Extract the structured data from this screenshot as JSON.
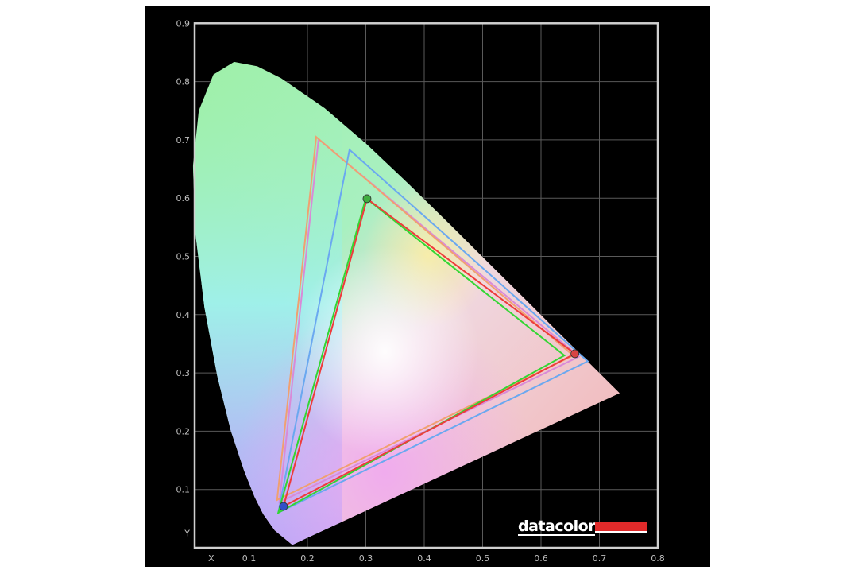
{
  "chart_data": {
    "type": "scatter",
    "title": "",
    "xlabel": "X",
    "ylabel": "Y",
    "xlim": [
      0,
      0.8
    ],
    "ylim": [
      0,
      0.9
    ],
    "x_ticks": [
      "0.1",
      "0.2",
      "0.3",
      "0.4",
      "0.5",
      "0.6",
      "0.7",
      "0.8"
    ],
    "y_ticks": [
      "0.1",
      "0.2",
      "0.3",
      "0.4",
      "0.5",
      "0.6",
      "0.7",
      "0.8",
      "0.9"
    ],
    "grid": true,
    "background": "#000000",
    "spectral_locus": [
      [
        0.1741,
        0.005
      ],
      [
        0.144,
        0.0297
      ],
      [
        0.1241,
        0.0578
      ],
      [
        0.1096,
        0.0868
      ],
      [
        0.0913,
        0.1327
      ],
      [
        0.0687,
        0.2007
      ],
      [
        0.0454,
        0.295
      ],
      [
        0.0235,
        0.4127
      ],
      [
        0.0082,
        0.5384
      ],
      [
        0.0039,
        0.6548
      ],
      [
        0.0139,
        0.7502
      ],
      [
        0.0389,
        0.812
      ],
      [
        0.0743,
        0.8338
      ],
      [
        0.1142,
        0.8262
      ],
      [
        0.1547,
        0.8059
      ],
      [
        0.2296,
        0.7543
      ],
      [
        0.3016,
        0.6923
      ],
      [
        0.3731,
        0.6245
      ],
      [
        0.4441,
        0.5547
      ],
      [
        0.5125,
        0.4866
      ],
      [
        0.5752,
        0.4242
      ],
      [
        0.627,
        0.3725
      ],
      [
        0.6915,
        0.3083
      ],
      [
        0.7347,
        0.2653
      ]
    ],
    "series": [
      {
        "color": "#d98ad8",
        "points": [
          [
            0.219,
            0.701
          ],
          [
            0.665,
            0.328
          ],
          [
            0.152,
            0.078
          ]
        ]
      },
      {
        "color": "#f0a070",
        "points": [
          [
            0.215,
            0.705
          ],
          [
            0.655,
            0.33
          ],
          [
            0.148,
            0.082
          ]
        ]
      },
      {
        "color": "#6aa8f0",
        "points": [
          [
            0.272,
            0.683
          ],
          [
            0.68,
            0.32
          ],
          [
            0.15,
            0.06
          ]
        ]
      },
      {
        "color": "#33d633",
        "points": [
          [
            0.3,
            0.6
          ],
          [
            0.64,
            0.33
          ],
          [
            0.15,
            0.06
          ]
        ]
      },
      {
        "color": "#ee3b3b",
        "points": [
          [
            0.302,
            0.599
          ],
          [
            0.658,
            0.333
          ],
          [
            0.159,
            0.071
          ]
        ],
        "markers": true
      }
    ]
  },
  "logo": {
    "text": "datacolor",
    "accent": "#e02a2a"
  }
}
